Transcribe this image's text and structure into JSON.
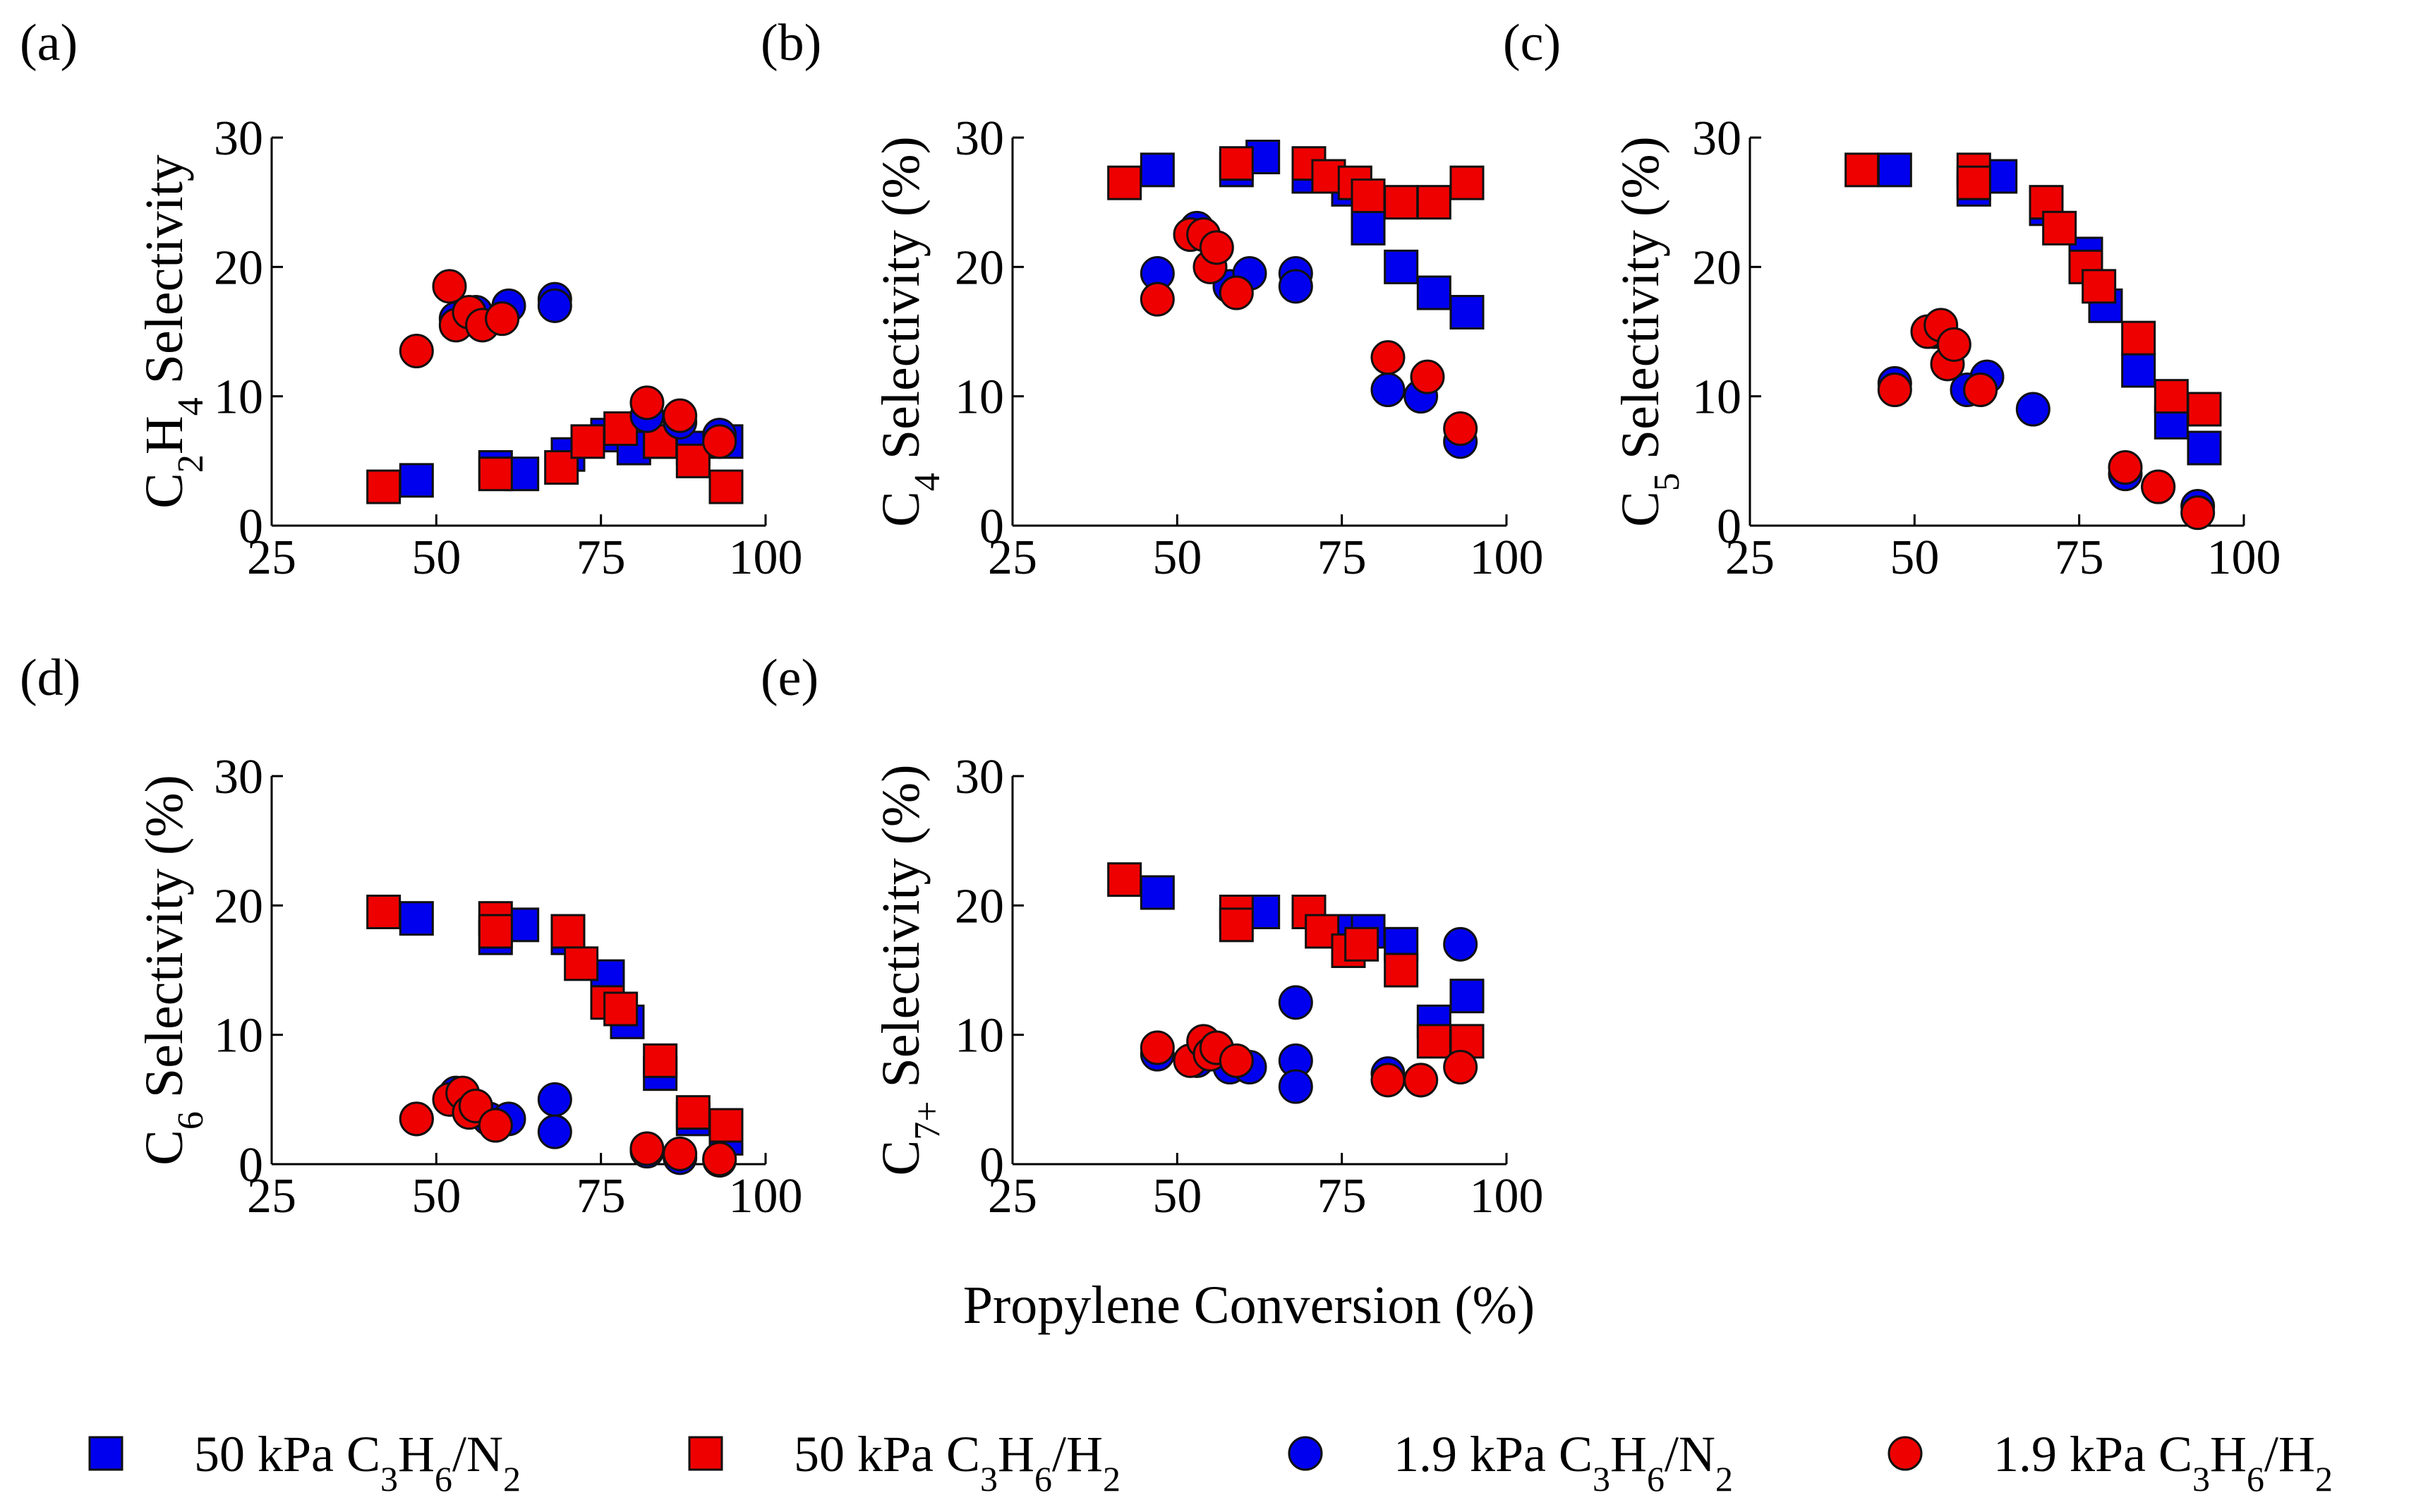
{
  "x_axis_label": "Propylene Conversion (%)",
  "colors": {
    "blue": "#0000ee",
    "red": "#ee0000",
    "outline": "#111111"
  },
  "legend": [
    {
      "label_pre": "50 kPa C",
      "label_sub1": "3",
      "label_mid": "H",
      "label_sub2": "6",
      "label_post": "/N",
      "label_sub3": "2",
      "marker": "square",
      "color": "#0000ee"
    },
    {
      "label_pre": "50 kPa C",
      "label_sub1": "3",
      "label_mid": "H",
      "label_sub2": "6",
      "label_post": "/H",
      "label_sub3": "2",
      "marker": "square",
      "color": "#ee0000"
    },
    {
      "label_pre": "1.9 kPa C",
      "label_sub1": "3",
      "label_mid": "H",
      "label_sub2": "6",
      "label_post": "/N",
      "label_sub3": "2",
      "marker": "circle",
      "color": "#0000ee"
    },
    {
      "label_pre": "1.9 kPa C",
      "label_sub1": "3",
      "label_mid": "H",
      "label_sub2": "6",
      "label_post": "/H",
      "label_sub3": "2",
      "marker": "circle",
      "color": "#ee0000"
    }
  ],
  "chart_data": [
    {
      "type": "scatter",
      "panel": "(a)",
      "ylabel_parts": [
        [
          "C",
          ""
        ],
        [
          "2",
          "sub"
        ],
        [
          "H",
          ""
        ],
        [
          "4",
          "sub"
        ],
        [
          " Selectivity",
          ""
        ]
      ],
      "xlim": [
        25,
        100
      ],
      "ylim": [
        0,
        30
      ],
      "xticks": [
        "25",
        "50",
        "75",
        "100"
      ],
      "yticks": [
        "0",
        "10",
        "20",
        "30"
      ],
      "series": [
        {
          "name": "50 kPa C3H6/N2",
          "marker": "square",
          "color": "#0000ee",
          "x": [
            47,
            59,
            63,
            70,
            76,
            80,
            84,
            89,
            94
          ],
          "y": [
            3.5,
            4.5,
            4,
            5.5,
            7,
            6,
            6.5,
            6,
            6.5
          ]
        },
        {
          "name": "50 kPa C3H6/H2",
          "marker": "square",
          "color": "#ee0000",
          "x": [
            42,
            59,
            69,
            73,
            78,
            84,
            89,
            94
          ],
          "y": [
            3,
            4,
            4.5,
            6.5,
            7.5,
            6.5,
            5,
            3
          ]
        },
        {
          "name": "1.9 kPa C3H6/N2",
          "marker": "circle",
          "color": "#0000ee",
          "x": [
            53,
            56,
            61,
            68,
            68,
            82,
            87,
            93
          ],
          "y": [
            16,
            16.5,
            17,
            17.5,
            17,
            8.5,
            8,
            7
          ]
        },
        {
          "name": "1.9 kPa C3H6/H2",
          "marker": "circle",
          "color": "#ee0000",
          "x": [
            47,
            52,
            53,
            55,
            57,
            60,
            82,
            87,
            93
          ],
          "y": [
            13.5,
            18.5,
            15.5,
            16.5,
            15.5,
            16,
            9.5,
            8.5,
            6.5
          ]
        }
      ]
    },
    {
      "type": "scatter",
      "panel": "(b)",
      "ylabel_parts": [
        [
          "C",
          ""
        ],
        [
          "4",
          "sub"
        ],
        [
          " Selectivity (%)",
          ""
        ]
      ],
      "xlim": [
        25,
        100
      ],
      "ylim": [
        0,
        30
      ],
      "xticks": [
        "25",
        "50",
        "75",
        "100"
      ],
      "yticks": [
        "0",
        "10",
        "20",
        "30"
      ],
      "series": [
        {
          "name": "50 kPa C3H6/N2",
          "marker": "square",
          "color": "#0000ee",
          "x": [
            47,
            59,
            63,
            70,
            76,
            79,
            84,
            89,
            94
          ],
          "y": [
            27.5,
            27.5,
            28.5,
            27,
            26,
            23,
            20,
            18,
            16.5
          ]
        },
        {
          "name": "50 kPa C3H6/H2",
          "marker": "square",
          "color": "#ee0000",
          "x": [
            42,
            59,
            70,
            73,
            77,
            79,
            84,
            89,
            94
          ],
          "y": [
            26.5,
            28,
            28,
            27,
            26.5,
            25.5,
            25,
            25,
            26.5
          ]
        },
        {
          "name": "1.9 kPa C3H6/N2",
          "marker": "circle",
          "color": "#0000ee",
          "x": [
            47,
            53,
            58,
            61,
            68,
            68,
            82,
            87,
            93
          ],
          "y": [
            19.5,
            23,
            18.5,
            19.5,
            19.5,
            18.5,
            10.5,
            10,
            6.5
          ]
        },
        {
          "name": "1.9 kPa C3H6/H2",
          "marker": "circle",
          "color": "#ee0000",
          "x": [
            47,
            52,
            54,
            55,
            56,
            59,
            82,
            88,
            93
          ],
          "y": [
            17.5,
            22.5,
            22.5,
            20,
            21.5,
            18,
            13,
            11.5,
            7.5
          ]
        }
      ]
    },
    {
      "type": "scatter",
      "panel": "(c)",
      "ylabel_parts": [
        [
          "C",
          ""
        ],
        [
          "5",
          "sub"
        ],
        [
          " Selectivity (%)",
          ""
        ]
      ],
      "xlim": [
        25,
        100
      ],
      "ylim": [
        0,
        30
      ],
      "xticks": [
        "25",
        "50",
        "75",
        "100"
      ],
      "yticks": [
        "0",
        "10",
        "20",
        "30"
      ],
      "series": [
        {
          "name": "50 kPa C3H6/N2",
          "marker": "square",
          "color": "#0000ee",
          "x": [
            47,
            59,
            63,
            70,
            76,
            79,
            84,
            89,
            94
          ],
          "y": [
            27.5,
            26,
            27,
            24.5,
            21,
            17,
            12,
            8,
            6
          ]
        },
        {
          "name": "50 kPa C3H6/H2",
          "marker": "square",
          "color": "#ee0000",
          "x": [
            42,
            59,
            59,
            70,
            72,
            76,
            78,
            84,
            89,
            94
          ],
          "y": [
            27.5,
            27.5,
            26.5,
            25,
            23,
            20,
            18.5,
            14.5,
            10,
            9
          ]
        },
        {
          "name": "1.9 kPa C3H6/N2",
          "marker": "circle",
          "color": "#0000ee",
          "x": [
            47,
            53,
            58,
            61,
            68,
            82,
            87,
            93
          ],
          "y": [
            11,
            15,
            10.5,
            11.5,
            9,
            4,
            3,
            1.5
          ]
        },
        {
          "name": "1.9 kPa C3H6/H2",
          "marker": "circle",
          "color": "#ee0000",
          "x": [
            47,
            52,
            54,
            55,
            56,
            60,
            82,
            87,
            93
          ],
          "y": [
            10.5,
            15,
            15.5,
            12.5,
            14,
            10.5,
            4.5,
            3,
            1
          ]
        }
      ]
    },
    {
      "type": "scatter",
      "panel": "(d)",
      "ylabel_parts": [
        [
          "C",
          ""
        ],
        [
          "6",
          "sub"
        ],
        [
          " Selectivity (%)",
          ""
        ]
      ],
      "xlim": [
        25,
        100
      ],
      "ylim": [
        0,
        30
      ],
      "xticks": [
        "25",
        "50",
        "75",
        "100"
      ],
      "yticks": [
        "0",
        "10",
        "20",
        "30"
      ],
      "series": [
        {
          "name": "50 kPa C3H6/N2",
          "marker": "square",
          "color": "#0000ee",
          "x": [
            47,
            59,
            63,
            70,
            76,
            79,
            84,
            89,
            94
          ],
          "y": [
            19,
            17.5,
            18.5,
            17.5,
            14.5,
            11,
            7,
            3.5,
            2
          ]
        },
        {
          "name": "50 kPa C3H6/H2",
          "marker": "square",
          "color": "#ee0000",
          "x": [
            42,
            59,
            59,
            70,
            72,
            76,
            78,
            84,
            89,
            94
          ],
          "y": [
            19.5,
            19,
            18,
            18,
            15.5,
            12.5,
            12,
            8,
            4,
            3
          ]
        },
        {
          "name": "1.9 kPa C3H6/N2",
          "marker": "circle",
          "color": "#0000ee",
          "x": [
            47,
            53,
            58,
            61,
            68,
            68,
            82,
            87,
            93
          ],
          "y": [
            3.5,
            5.5,
            3.5,
            3.5,
            5,
            2.5,
            1,
            0.5,
            0.3
          ]
        },
        {
          "name": "1.9 kPa C3H6/H2",
          "marker": "circle",
          "color": "#ee0000",
          "x": [
            47,
            52,
            54,
            55,
            56,
            59,
            82,
            87,
            93
          ],
          "y": [
            3.5,
            5,
            5.5,
            4,
            4.5,
            3,
            1.2,
            0.8,
            0.4
          ]
        }
      ]
    },
    {
      "type": "scatter",
      "panel": "(e)",
      "ylabel_parts": [
        [
          "C",
          ""
        ],
        [
          "7+",
          "sub"
        ],
        [
          " Selectivity (%)",
          ""
        ]
      ],
      "xlim": [
        25,
        100
      ],
      "ylim": [
        0,
        30
      ],
      "xticks": [
        "25",
        "50",
        "75",
        "100"
      ],
      "yticks": [
        "0",
        "10",
        "20",
        "30"
      ],
      "series": [
        {
          "name": "50 kPa C3H6/N2",
          "marker": "square",
          "color": "#0000ee",
          "x": [
            47,
            63,
            70,
            76,
            79,
            84,
            89,
            94
          ],
          "y": [
            21,
            19.5,
            19.5,
            18,
            18,
            17,
            11,
            13
          ]
        },
        {
          "name": "50 kPa C3H6/H2",
          "marker": "square",
          "color": "#ee0000",
          "x": [
            42,
            59,
            59,
            70,
            72,
            76,
            78,
            84,
            89,
            94
          ],
          "y": [
            22,
            19.5,
            18.5,
            19.5,
            18,
            16.5,
            17,
            15,
            9.5,
            9.5
          ]
        },
        {
          "name": "1.9 kPa C3H6/N2",
          "marker": "circle",
          "color": "#0000ee",
          "x": [
            47,
            53,
            58,
            61,
            68,
            68,
            68,
            82,
            87,
            93
          ],
          "y": [
            8.5,
            8,
            7.5,
            7.5,
            12.5,
            8,
            6,
            7,
            6.5,
            17
          ]
        },
        {
          "name": "1.9 kPa C3H6/H2",
          "marker": "circle",
          "color": "#ee0000",
          "x": [
            47,
            52,
            54,
            55,
            56,
            59,
            82,
            87,
            93
          ],
          "y": [
            9,
            8,
            9.5,
            8.5,
            9,
            8,
            6.5,
            6.5,
            7.5
          ]
        }
      ]
    }
  ]
}
